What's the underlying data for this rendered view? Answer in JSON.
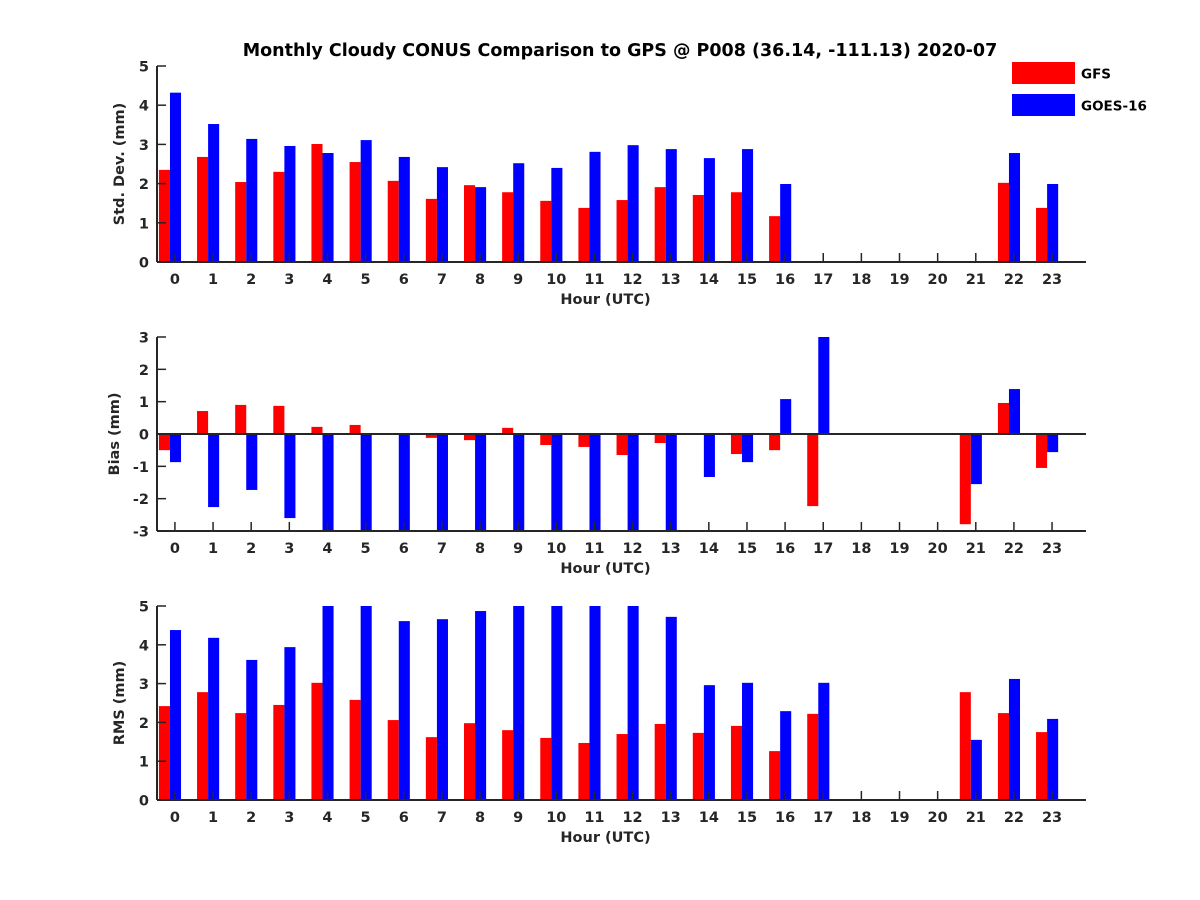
{
  "figure": {
    "title": "Monthly Cloudy CONUS Comparison to GPS @ P008 (36.14, -111.13) 2020-07"
  },
  "chart_data": [
    {
      "type": "bar",
      "panel": "std-dev",
      "title": "Monthly Cloudy CONUS Comparison to GPS @ P008 (36.14, -111.13) 2020-07",
      "xlabel": "Hour (UTC)",
      "ylabel": "Std. Dev. (mm)",
      "categories": [
        "0",
        "1",
        "2",
        "3",
        "4",
        "5",
        "6",
        "7",
        "8",
        "9",
        "10",
        "11",
        "12",
        "13",
        "14",
        "15",
        "16",
        "17",
        "18",
        "19",
        "20",
        "21",
        "22",
        "23"
      ],
      "yticks": [
        "0",
        "1",
        "2",
        "3",
        "4",
        "5"
      ],
      "ylim": [
        0,
        5
      ],
      "xlim": [
        -0.47,
        23.89
      ],
      "grid": false,
      "legend": {
        "placement": "top-right",
        "entries": [
          "GFS",
          "GOES-16"
        ]
      },
      "series": [
        {
          "name": "GFS",
          "color": "#ff0000",
          "values": [
            2.35,
            2.68,
            2.04,
            2.3,
            3.01,
            2.55,
            2.07,
            1.61,
            1.96,
            1.78,
            1.56,
            1.38,
            1.58,
            1.91,
            1.71,
            1.78,
            1.17,
            null,
            null,
            null,
            null,
            null,
            2.02,
            1.38
          ]
        },
        {
          "name": "GOES-16",
          "color": "#0000ff",
          "values": [
            4.32,
            3.52,
            3.14,
            2.96,
            2.78,
            3.11,
            2.68,
            2.42,
            1.91,
            2.52,
            2.4,
            2.81,
            2.98,
            2.88,
            2.65,
            2.88,
            1.99,
            null,
            null,
            null,
            null,
            null,
            2.78,
            1.99
          ]
        }
      ]
    },
    {
      "type": "bar",
      "panel": "bias",
      "xlabel": "Hour (UTC)",
      "ylabel": "Bias (mm)",
      "categories": [
        "0",
        "1",
        "2",
        "3",
        "4",
        "5",
        "6",
        "7",
        "8",
        "9",
        "10",
        "11",
        "12",
        "13",
        "14",
        "15",
        "16",
        "17",
        "18",
        "19",
        "20",
        "21",
        "22",
        "23"
      ],
      "yticks": [
        "-3",
        "-2",
        "-1",
        "0",
        "1",
        "2",
        "3"
      ],
      "ylim": [
        -3,
        3
      ],
      "xlim": [
        -0.47,
        23.89
      ],
      "grid": false,
      "zero_line": true,
      "series": [
        {
          "name": "GFS",
          "color": "#ff0000",
          "values": [
            -0.5,
            0.71,
            0.9,
            0.87,
            0.22,
            0.28,
            0.0,
            -0.12,
            -0.19,
            0.19,
            -0.34,
            -0.4,
            -0.65,
            -0.28,
            0.0,
            -0.62,
            -0.5,
            -2.23,
            null,
            null,
            null,
            -2.79,
            0.96,
            -1.05
          ]
        },
        {
          "name": "GOES-16",
          "color": "#0000ff",
          "values": [
            -0.87,
            -2.26,
            -1.73,
            -2.6,
            -3.0,
            -3.0,
            -3.0,
            -3.0,
            -3.0,
            -3.0,
            -3.0,
            -3.0,
            -3.0,
            -3.0,
            -1.33,
            -0.87,
            1.08,
            3.0,
            null,
            null,
            null,
            -1.55,
            1.39,
            -0.56
          ]
        }
      ]
    },
    {
      "type": "bar",
      "panel": "rms",
      "xlabel": "Hour (UTC)",
      "ylabel": "RMS (mm)",
      "categories": [
        "0",
        "1",
        "2",
        "3",
        "4",
        "5",
        "6",
        "7",
        "8",
        "9",
        "10",
        "11",
        "12",
        "13",
        "14",
        "15",
        "16",
        "17",
        "18",
        "19",
        "20",
        "21",
        "22",
        "23"
      ],
      "yticks": [
        "0",
        "1",
        "2",
        "3",
        "4",
        "5"
      ],
      "ylim": [
        0,
        5
      ],
      "xlim": [
        -0.47,
        23.89
      ],
      "grid": false,
      "series": [
        {
          "name": "GFS",
          "color": "#ff0000",
          "values": [
            2.42,
            2.78,
            2.24,
            2.45,
            3.02,
            2.58,
            2.06,
            1.62,
            1.98,
            1.8,
            1.6,
            1.47,
            1.7,
            1.96,
            1.73,
            1.91,
            1.26,
            2.22,
            null,
            null,
            null,
            2.78,
            2.24,
            1.75
          ]
        },
        {
          "name": "GOES-16",
          "color": "#0000ff",
          "values": [
            4.38,
            4.18,
            3.61,
            3.94,
            5.0,
            5.0,
            4.61,
            4.66,
            4.87,
            5.0,
            5.0,
            5.0,
            5.0,
            4.72,
            2.96,
            3.02,
            2.29,
            3.02,
            null,
            null,
            null,
            1.55,
            3.12,
            2.09
          ]
        }
      ]
    }
  ]
}
